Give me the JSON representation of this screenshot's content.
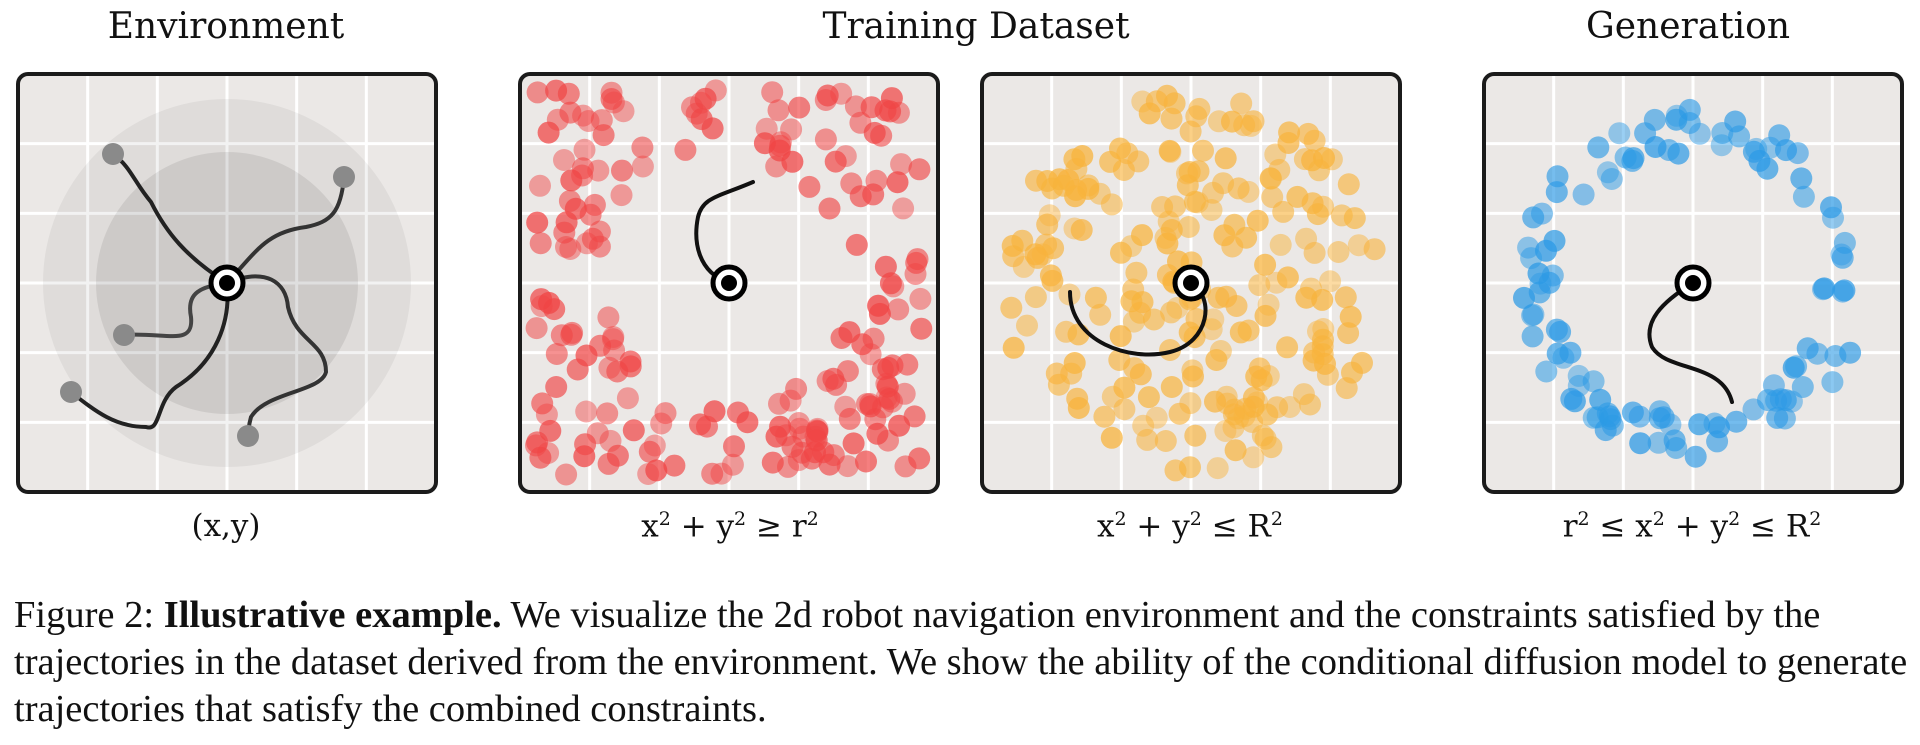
{
  "titles": {
    "environment": "Environment",
    "training": "Training Dataset",
    "generation": "Generation"
  },
  "formulas": {
    "environment": {
      "a": "(x,y)"
    },
    "training_left": {
      "a": "x",
      "b": "2",
      "c": " + y",
      "d": "2",
      "e": " ≥ r",
      "f": "2"
    },
    "training_right": {
      "a": "x",
      "b": "2",
      "c": " + y",
      "d": "2",
      "e": " ≤ R",
      "f": "2"
    },
    "generation": {
      "a": "r",
      "b": "2",
      "c": " ≤ x",
      "d": "2",
      "e": " + y",
      "f": "2",
      "g": " ≤ R",
      "h": "2"
    }
  },
  "caption": {
    "prefix": "Figure 2: ",
    "bold": "Illustrative example.",
    "text": " We visualize the 2d robot navigation environment and the constraints satisfied by the trajectories in the dataset derived from the environment. We show the ability of the conditional diffusion model to generate trajectories that satisfy the combined constraints."
  },
  "colors": {
    "panel_bg": "#ebe8e6",
    "grid": "#ffffff",
    "frame": "#1b1b1b",
    "red": "#f04545",
    "orange": "#f8b33c",
    "blue": "#2c9ae5"
  },
  "icons": {
    "goal": "target-icon"
  }
}
